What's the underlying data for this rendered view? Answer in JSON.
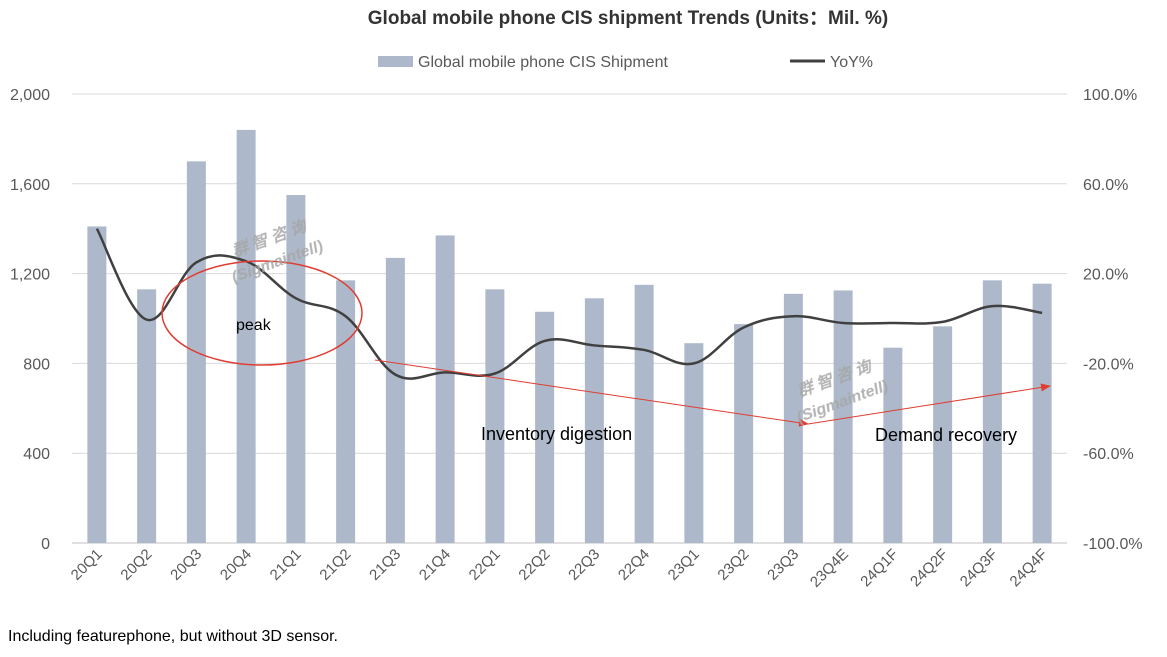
{
  "chart_data": {
    "type": "bar+line",
    "title": "Global mobile phone CIS shipment Trends (Units：Mil. %)",
    "categories": [
      "20Q1",
      "20Q2",
      "20Q3",
      "20Q4",
      "21Q1",
      "21Q2",
      "21Q3",
      "21Q4",
      "22Q1",
      "22Q2",
      "22Q3",
      "22Q4",
      "23Q1",
      "23Q2",
      "23Q3",
      "23Q4E",
      "24Q1F",
      "24Q2F",
      "24Q3F",
      "24Q4F"
    ],
    "series": [
      {
        "name": "Global mobile phone CIS Shipment",
        "type": "bar",
        "axis": "left",
        "color": "#adb9ca",
        "values": [
          1410,
          1130,
          1700,
          1840,
          1550,
          1170,
          1270,
          1370,
          1130,
          1030,
          1090,
          1150,
          890,
          975,
          1110,
          1125,
          870,
          965,
          1170,
          1155
        ]
      },
      {
        "name": "YoY%",
        "type": "line",
        "axis": "right",
        "color": "#404040",
        "values": [
          40,
          -0.5,
          25,
          25.5,
          9,
          1,
          -25,
          -24,
          -24.5,
          -10,
          -12,
          -14,
          -20,
          -4,
          1,
          -2,
          -2,
          -1.5,
          5.5,
          2.5
        ]
      }
    ],
    "y_left": {
      "min": 0,
      "max": 2000,
      "ticks": [
        0,
        400,
        800,
        1200,
        1600,
        2000
      ],
      "tick_labels": [
        "0",
        "400",
        "800",
        "1,200",
        "1,600",
        "2,000"
      ]
    },
    "y_right": {
      "min": -100,
      "max": 100,
      "ticks": [
        -100,
        -60,
        -20,
        20,
        60,
        100
      ],
      "tick_labels": [
        "-100.0%",
        "-60.0%",
        "-20.0%",
        "20.0%",
        "60.0%",
        "100.0%"
      ]
    },
    "legend": {
      "position": "top-center"
    },
    "grid": true,
    "annotations": {
      "peak": "peak",
      "inventory": "Inventory digestion",
      "demand": "Demand recovery"
    },
    "arrow_color": "#e03c31",
    "watermark": {
      "chinese": "群 智 咨 询",
      "latin": "(Sigmaintell)"
    }
  },
  "footnote": "Including featurephone, but without 3D sensor."
}
